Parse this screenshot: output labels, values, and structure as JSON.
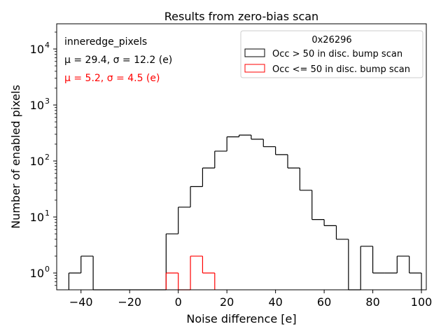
{
  "chart_data": {
    "type": "histogram",
    "title": "Results from zero-bias scan",
    "xlabel": "Noise difference [e]",
    "ylabel": "Number of enabled pixels",
    "xlim": [
      -50,
      102
    ],
    "ylim_log10": [
      -0.3,
      4.45
    ],
    "x_ticks": [
      -40,
      -20,
      0,
      20,
      40,
      60,
      80,
      100
    ],
    "x_tick_labels": [
      "−40",
      "−20",
      "0",
      "20",
      "40",
      "60",
      "80",
      "100"
    ],
    "y_ticks": [
      1,
      10,
      100,
      1000,
      10000
    ],
    "bin_width": 5,
    "annotations": {
      "label": "inneredge_pixels",
      "stats_black": "μ = 29.4, σ = 12.2 (e)",
      "stats_red": "μ = 5.2, σ = 4.5 (e)"
    },
    "legend": {
      "title": "0x26296",
      "location": "top-right"
    },
    "series": [
      {
        "name": "Occ > 50 in disc. bump scan",
        "color": "#000000",
        "bin_edges": [
          -45,
          -40,
          -35,
          -30,
          -25,
          -20,
          -15,
          -10,
          -5,
          0,
          5,
          10,
          15,
          20,
          25,
          30,
          35,
          40,
          45,
          50,
          55,
          60,
          65,
          70,
          75,
          80,
          85,
          90,
          95,
          100
        ],
        "counts": [
          1,
          2,
          0,
          0,
          0,
          0,
          0,
          0,
          5,
          15,
          35,
          75,
          150,
          270,
          290,
          245,
          180,
          130,
          75,
          30,
          9,
          7,
          4,
          0,
          3,
          1,
          1,
          2,
          1
        ]
      },
      {
        "name": "Occ <= 50 in disc. bump scan",
        "color": "#ff0000",
        "bin_edges": [
          -5,
          0,
          5,
          10,
          15
        ],
        "counts": [
          1,
          0,
          2,
          1
        ]
      }
    ]
  }
}
